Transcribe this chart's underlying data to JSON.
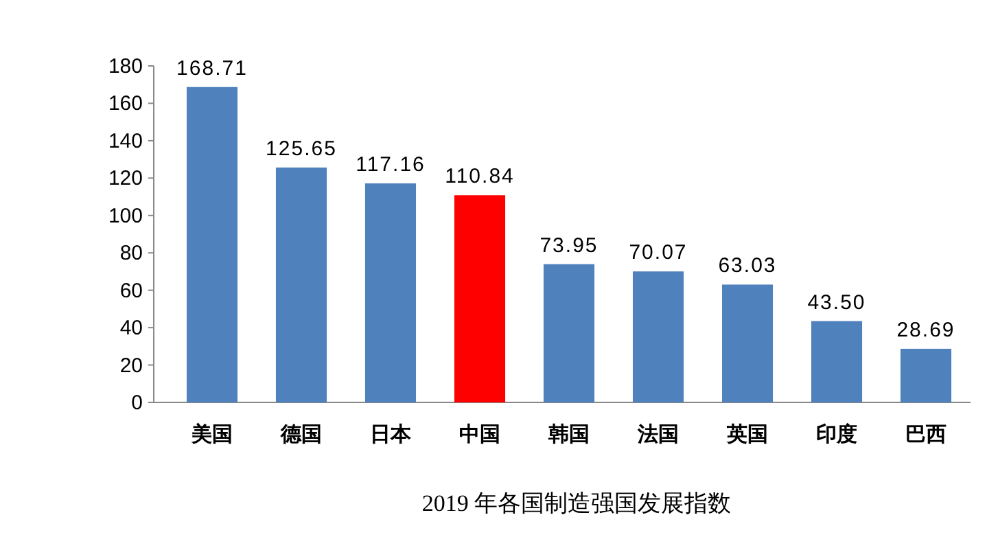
{
  "chart_data": {
    "type": "bar",
    "categories": [
      "美国",
      "德国",
      "日本",
      "中国",
      "韩国",
      "法国",
      "英国",
      "印度",
      "巴西"
    ],
    "values": [
      168.71,
      125.65,
      117.16,
      110.84,
      73.95,
      70.07,
      63.03,
      43.5,
      28.69
    ],
    "value_labels": [
      "168.71",
      "125.65",
      "117.16",
      "110.84",
      "73.95",
      "70.07",
      "63.03",
      "43.50",
      "28.69"
    ],
    "colors": [
      "#4f81bd",
      "#4f81bd",
      "#4f81bd",
      "#ff0000",
      "#4f81bd",
      "#4f81bd",
      "#4f81bd",
      "#4f81bd",
      "#4f81bd"
    ],
    "ylim": [
      0,
      180
    ],
    "yticks": [
      0,
      20,
      40,
      60,
      80,
      100,
      120,
      140,
      160,
      180
    ],
    "annotations": [
      "2019 年各国制造强国发展指数"
    ]
  }
}
